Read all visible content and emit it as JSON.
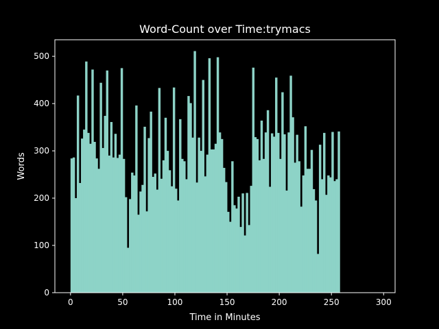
{
  "chart_data": {
    "type": "bar",
    "title": "Word-Count over Time:trymacs",
    "xlabel": "Time in Minutes",
    "ylabel": "Words",
    "xlim": [
      -15,
      311
    ],
    "ylim": [
      0,
      535
    ],
    "xticks": [
      0,
      50,
      100,
      150,
      200,
      250,
      300
    ],
    "yticks": [
      0,
      100,
      200,
      300,
      400,
      500
    ],
    "grid": false,
    "bar_color": "#8dd3c7",
    "background": "#000000",
    "foreground": "#ffffff",
    "bar_width": 2,
    "x_start": 0,
    "x_step": 2,
    "values": [
      284,
      286,
      200,
      417,
      232,
      326,
      345,
      489,
      338,
      315,
      472,
      319,
      284,
      262,
      444,
      306,
      374,
      470,
      290,
      361,
      286,
      336,
      285,
      292,
      475,
      283,
      202,
      95,
      198,
      254,
      248,
      396,
      165,
      214,
      228,
      351,
      172,
      327,
      383,
      245,
      252,
      218,
      433,
      241,
      280,
      370,
      300,
      259,
      225,
      434,
      220,
      195,
      367,
      283,
      278,
      240,
      416,
      401,
      328,
      511,
      233,
      328,
      300,
      450,
      246,
      292,
      496,
      303,
      303,
      315,
      498,
      339,
      325,
      264,
      234,
      171,
      150,
      278,
      185,
      178,
      203,
      139,
      210,
      121,
      211,
      143,
      226,
      476,
      329,
      325,
      280,
      364,
      283,
      339,
      386,
      224,
      337,
      330,
      455,
      338,
      283,
      424,
      335,
      216,
      339,
      459,
      371,
      275,
      334,
      278,
      182,
      248,
      352,
      262,
      262,
      302,
      219,
      195,
      82,
      313,
      240,
      338,
      207,
      248,
      244,
      340,
      236,
      240,
      341
    ]
  }
}
